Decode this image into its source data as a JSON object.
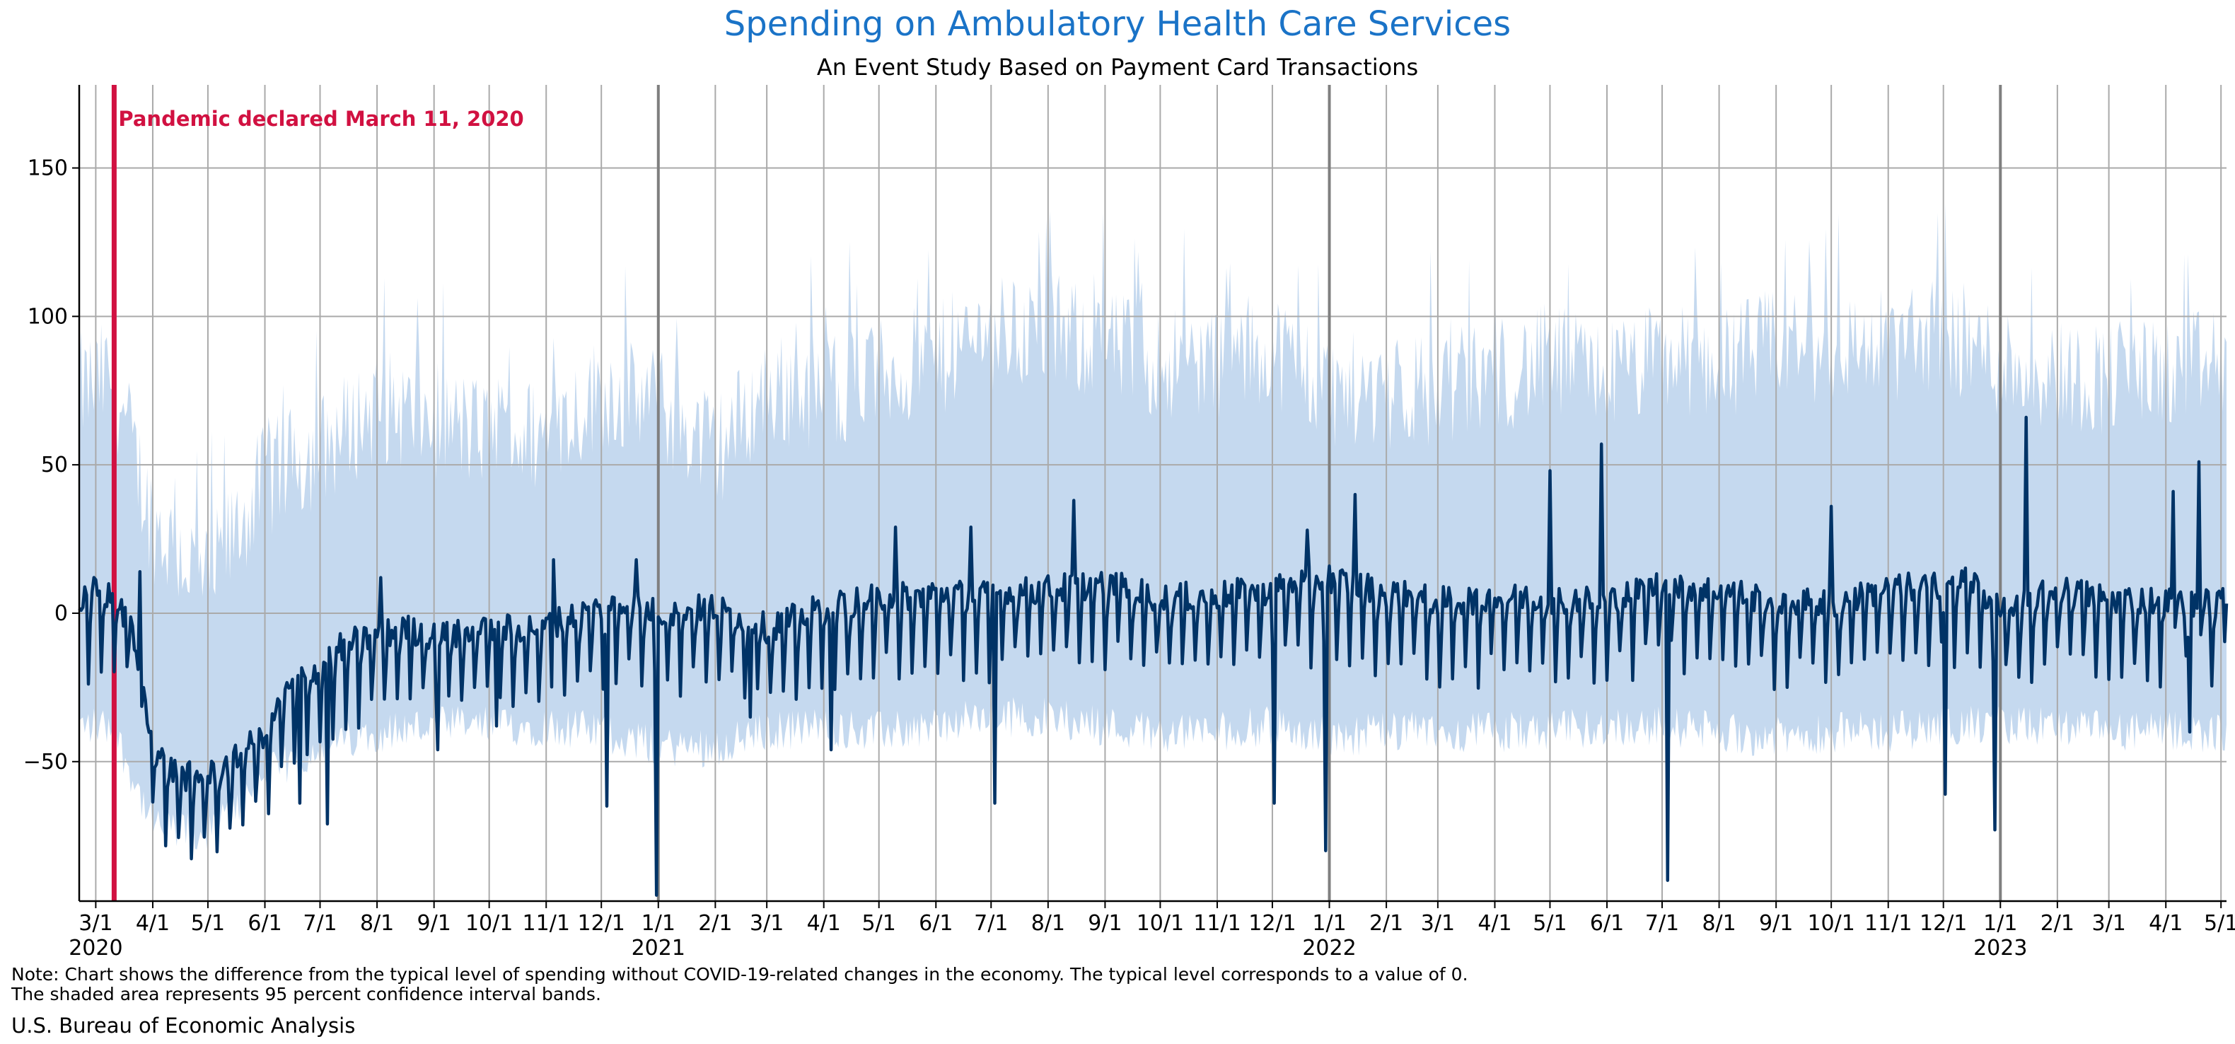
{
  "chart_data": {
    "type": "line",
    "title": "Spending on Ambulatory Health Care Services",
    "subtitle": "An Event Study Based on Payment Card Transactions",
    "xlabel": "",
    "ylabel": "",
    "ylim": [
      -97,
      178
    ],
    "xlim": [
      "2020-02-21",
      "2023-05-04"
    ],
    "yticks": [
      -50,
      0,
      50,
      100,
      150
    ],
    "xtick_labels": [
      "3/1",
      "4/1",
      "5/1",
      "6/1",
      "7/1",
      "8/1",
      "9/1",
      "10/1",
      "11/1",
      "12/1",
      "1/1",
      "2/1",
      "3/1",
      "4/1",
      "5/1",
      "6/1",
      "7/1",
      "8/1",
      "9/1",
      "10/1",
      "11/1",
      "12/1",
      "1/1",
      "2/1",
      "3/1",
      "4/1",
      "5/1",
      "6/1",
      "7/1",
      "8/1",
      "9/1",
      "10/1",
      "11/1",
      "12/1",
      "1/1",
      "2/1",
      "3/1",
      "4/1",
      "5/1"
    ],
    "xtick_dates": [
      "2020-03-01",
      "2020-04-01",
      "2020-05-01",
      "2020-06-01",
      "2020-07-01",
      "2020-08-01",
      "2020-09-01",
      "2020-10-01",
      "2020-11-01",
      "2020-12-01",
      "2021-01-01",
      "2021-02-01",
      "2021-03-01",
      "2021-04-01",
      "2021-05-01",
      "2021-06-01",
      "2021-07-01",
      "2021-08-01",
      "2021-09-01",
      "2021-10-01",
      "2021-11-01",
      "2021-12-01",
      "2022-01-01",
      "2022-02-01",
      "2022-03-01",
      "2022-04-01",
      "2022-05-01",
      "2022-06-01",
      "2022-07-01",
      "2022-08-01",
      "2022-09-01",
      "2022-10-01",
      "2022-11-01",
      "2022-12-01",
      "2023-01-01",
      "2023-02-01",
      "2023-03-01",
      "2023-04-01",
      "2023-05-01"
    ],
    "year_labels": [
      {
        "text": "2020",
        "date": "2020-03-01"
      },
      {
        "text": "2021",
        "date": "2021-01-01"
      },
      {
        "text": "2022",
        "date": "2022-01-01"
      },
      {
        "text": "2023",
        "date": "2023-01-01"
      }
    ],
    "year_lines": [
      "2021-01-01",
      "2022-01-01",
      "2023-01-01"
    ],
    "grid": true,
    "colors": {
      "title": "#1a73c7",
      "line": "#003366",
      "band": "#c5d9ef",
      "annotation": "#d11141",
      "grid": "#aaaaaa",
      "year_line": "#7f7f7f"
    },
    "annotation": {
      "text": "Pandemic declared March 11, 2020",
      "date": "2020-03-11"
    },
    "series": [
      {
        "type": "line",
        "x": [
          "2020-02-21",
          "2020-03-01",
          "2020-03-10",
          "2020-03-20",
          "2020-04-01",
          "2020-04-15",
          "2020-05-01",
          "2020-05-15",
          "2020-06-01",
          "2020-06-15",
          "2020-07-01",
          "2020-07-15",
          "2020-08-01",
          "2020-08-15",
          "2020-09-01",
          "2020-10-01",
          "2020-11-01",
          "2020-12-01",
          "2020-12-15",
          "2021-01-01",
          "2021-02-01",
          "2021-03-01",
          "2021-04-01",
          "2021-05-01",
          "2021-06-01",
          "2021-07-01",
          "2021-08-01",
          "2021-09-01",
          "2021-10-01",
          "2021-11-01",
          "2021-12-01",
          "2021-12-15",
          "2022-01-01",
          "2022-02-01",
          "2022-03-01",
          "2022-04-01",
          "2022-05-01",
          "2022-06-01",
          "2022-07-01",
          "2022-08-01",
          "2022-09-01",
          "2022-10-01",
          "2022-11-01",
          "2022-12-01",
          "2022-12-15",
          "2023-01-01",
          "2023-02-01",
          "2023-03-01",
          "2023-04-01",
          "2023-05-01",
          "2023-05-04"
        ],
        "values": [
          3,
          8,
          5,
          -5,
          -45,
          -55,
          -55,
          -50,
          -40,
          -25,
          -18,
          -10,
          -8,
          -5,
          -8,
          -6,
          -4,
          2,
          3,
          0,
          2,
          -5,
          2,
          5,
          7,
          6,
          8,
          10,
          5,
          6,
          8,
          10,
          12,
          7,
          4,
          5,
          5,
          4,
          10,
          8,
          4,
          3,
          8,
          10,
          12,
          0,
          8,
          5,
          4,
          3,
          12
        ],
        "swings": [
          {
            "x": "2020-03-18",
            "y": -18
          },
          {
            "x": "2020-03-25",
            "y": 14
          },
          {
            "x": "2020-06-20",
            "y": -64
          },
          {
            "x": "2020-07-05",
            "y": -71
          },
          {
            "x": "2020-08-03",
            "y": 12
          },
          {
            "x": "2020-09-03",
            "y": -46
          },
          {
            "x": "2020-10-05",
            "y": -38
          },
          {
            "x": "2020-11-05",
            "y": 18
          },
          {
            "x": "2020-12-04",
            "y": -65
          },
          {
            "x": "2020-12-20",
            "y": 18
          },
          {
            "x": "2020-12-31",
            "y": -95
          },
          {
            "x": "2021-02-20",
            "y": -35
          },
          {
            "x": "2021-04-05",
            "y": -46
          },
          {
            "x": "2021-05-10",
            "y": 29
          },
          {
            "x": "2021-06-20",
            "y": 29
          },
          {
            "x": "2021-07-03",
            "y": -64
          },
          {
            "x": "2021-08-15",
            "y": 38
          },
          {
            "x": "2021-12-02",
            "y": -64
          },
          {
            "x": "2021-12-20",
            "y": 28
          },
          {
            "x": "2021-12-30",
            "y": -80
          },
          {
            "x": "2022-01-15",
            "y": 40
          },
          {
            "x": "2022-05-01",
            "y": 48
          },
          {
            "x": "2022-05-29",
            "y": 57
          },
          {
            "x": "2022-07-04",
            "y": -90
          },
          {
            "x": "2022-10-01",
            "y": 36
          },
          {
            "x": "2022-12-02",
            "y": -61
          },
          {
            "x": "2022-12-29",
            "y": -73
          },
          {
            "x": "2023-01-15",
            "y": 66
          },
          {
            "x": "2023-04-05",
            "y": 41
          },
          {
            "x": "2023-04-14",
            "y": -40
          },
          {
            "x": "2023-04-19",
            "y": 51
          }
        ]
      },
      {
        "type": "band",
        "name": "95 percent confidence interval",
        "x": [
          "2020-02-21",
          "2020-03-10",
          "2020-04-01",
          "2020-05-01",
          "2020-06-01",
          "2020-07-01",
          "2020-08-01",
          "2020-09-01",
          "2020-10-01",
          "2020-11-01",
          "2020-12-01",
          "2021-01-01",
          "2021-02-01",
          "2021-03-01",
          "2021-04-01",
          "2021-05-01",
          "2021-06-01",
          "2021-07-01",
          "2021-08-01",
          "2021-09-01",
          "2021-10-01",
          "2021-11-01",
          "2021-12-01",
          "2022-01-01",
          "2022-02-01",
          "2022-03-01",
          "2022-04-01",
          "2022-05-01",
          "2022-06-01",
          "2022-07-01",
          "2022-08-01",
          "2022-09-01",
          "2022-10-01",
          "2022-11-01",
          "2022-12-01",
          "2023-01-01",
          "2023-02-01",
          "2023-03-01",
          "2023-04-01",
          "2023-05-04"
        ],
        "upper": [
          75,
          80,
          30,
          10,
          45,
          55,
          70,
          65,
          60,
          60,
          75,
          70,
          55,
          75,
          75,
          80,
          85,
          95,
          95,
          90,
          85,
          85,
          90,
          75,
          75,
          75,
          80,
          85,
          80,
          85,
          85,
          90,
          90,
          90,
          95,
          85,
          80,
          80,
          80,
          85
        ],
        "lower": [
          -38,
          -38,
          -72,
          -75,
          -55,
          -45,
          -40,
          -38,
          -38,
          -38,
          -40,
          -45,
          -45,
          -40,
          -38,
          -40,
          -38,
          -35,
          -35,
          -38,
          -40,
          -40,
          -38,
          -42,
          -40,
          -40,
          -40,
          -40,
          -38,
          -38,
          -40,
          -42,
          -40,
          -40,
          -38,
          -38,
          -38,
          -40,
          -40,
          -40
        ]
      }
    ]
  },
  "note": {
    "line1": "Note: Chart shows the difference from the typical level of spending without COVID-19-related changes in the economy. The typical level corresponds to a value of 0.",
    "line2": "The shaded area represents 95 percent confidence interval bands."
  },
  "source": "U.S. Bureau of Economic Analysis"
}
